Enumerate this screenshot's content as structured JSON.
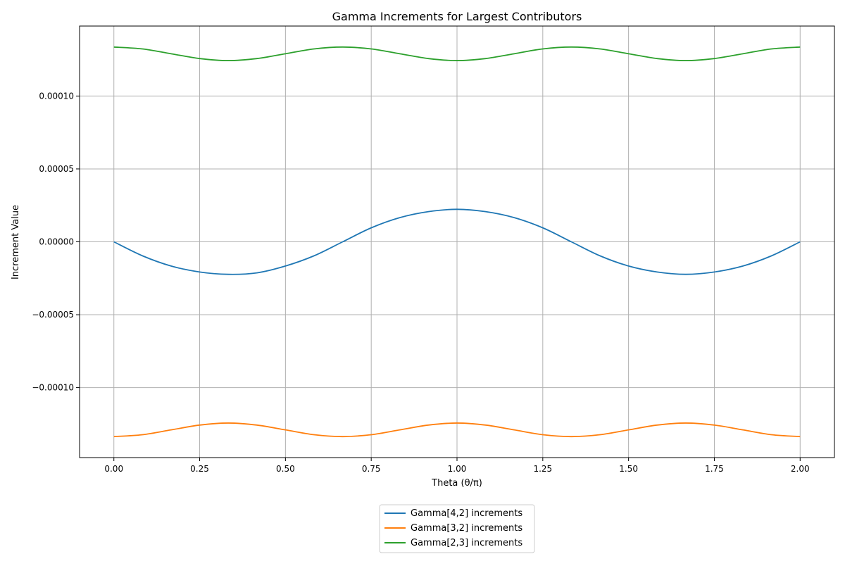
{
  "chart_data": {
    "type": "line",
    "title": "Gamma Increments for Largest Contributors",
    "xlabel": "Theta (θ/π)",
    "ylabel": "Increment Value",
    "xlim": [
      -0.1,
      2.1
    ],
    "ylim": [
      -0.000148,
      0.000148
    ],
    "x_ticks": [
      {
        "value": 0.0,
        "label": "0.00"
      },
      {
        "value": 0.25,
        "label": "0.25"
      },
      {
        "value": 0.5,
        "label": "0.50"
      },
      {
        "value": 0.75,
        "label": "0.75"
      },
      {
        "value": 1.0,
        "label": "1.00"
      },
      {
        "value": 1.25,
        "label": "1.25"
      },
      {
        "value": 1.5,
        "label": "1.50"
      },
      {
        "value": 1.75,
        "label": "1.75"
      },
      {
        "value": 2.0,
        "label": "2.00"
      }
    ],
    "y_ticks": [
      {
        "value": -0.0001,
        "label": "−0.00010"
      },
      {
        "value": -5e-05,
        "label": "−0.00005"
      },
      {
        "value": 0.0,
        "label": "0.00000"
      },
      {
        "value": 5e-05,
        "label": "0.00005"
      },
      {
        "value": 0.0001,
        "label": "0.00010"
      }
    ],
    "grid": true,
    "legend_position": "bottom-center-below-axes",
    "x": [
      0.0,
      0.0833,
      0.1667,
      0.25,
      0.3333,
      0.4167,
      0.5,
      0.5833,
      0.6667,
      0.75,
      0.8333,
      0.9167,
      1.0,
      1.0833,
      1.1667,
      1.25,
      1.3333,
      1.4167,
      1.5,
      1.5833,
      1.6667,
      1.75,
      1.8333,
      1.9167,
      2.0
    ],
    "series": [
      {
        "name": "Gamma[4,2] increments",
        "color": "#1f77b4",
        "values": [
          0.0,
          -9.6e-06,
          -1.66e-05,
          -2.07e-05,
          -2.23e-05,
          -2.13e-05,
          -1.66e-05,
          -9.6e-06,
          0.0,
          9.6e-06,
          1.66e-05,
          2.07e-05,
          2.23e-05,
          2.07e-05,
          1.66e-05,
          9.6e-06,
          0.0,
          -9.6e-06,
          -1.66e-05,
          -2.07e-05,
          -2.23e-05,
          -2.07e-05,
          -1.66e-05,
          -9.6e-06,
          0.0
        ]
      },
      {
        "name": "Gamma[3,2] increments",
        "color": "#ff7f0e",
        "values": [
          -0.0001336,
          -0.0001323,
          -0.000129,
          -0.0001257,
          -0.0001243,
          -0.0001257,
          -0.000129,
          -0.0001323,
          -0.0001336,
          -0.0001323,
          -0.000129,
          -0.0001257,
          -0.0001243,
          -0.0001257,
          -0.000129,
          -0.0001323,
          -0.0001336,
          -0.0001323,
          -0.000129,
          -0.0001257,
          -0.0001243,
          -0.0001257,
          -0.000129,
          -0.0001323,
          -0.0001336
        ]
      },
      {
        "name": "Gamma[2,3] increments",
        "color": "#2ca02c",
        "values": [
          0.0001336,
          0.0001323,
          0.000129,
          0.0001257,
          0.0001243,
          0.0001257,
          0.000129,
          0.0001323,
          0.0001336,
          0.0001323,
          0.000129,
          0.0001257,
          0.0001243,
          0.0001257,
          0.000129,
          0.0001323,
          0.0001336,
          0.0001323,
          0.000129,
          0.0001257,
          0.0001243,
          0.0001257,
          0.000129,
          0.0001323,
          0.0001336
        ]
      }
    ]
  }
}
